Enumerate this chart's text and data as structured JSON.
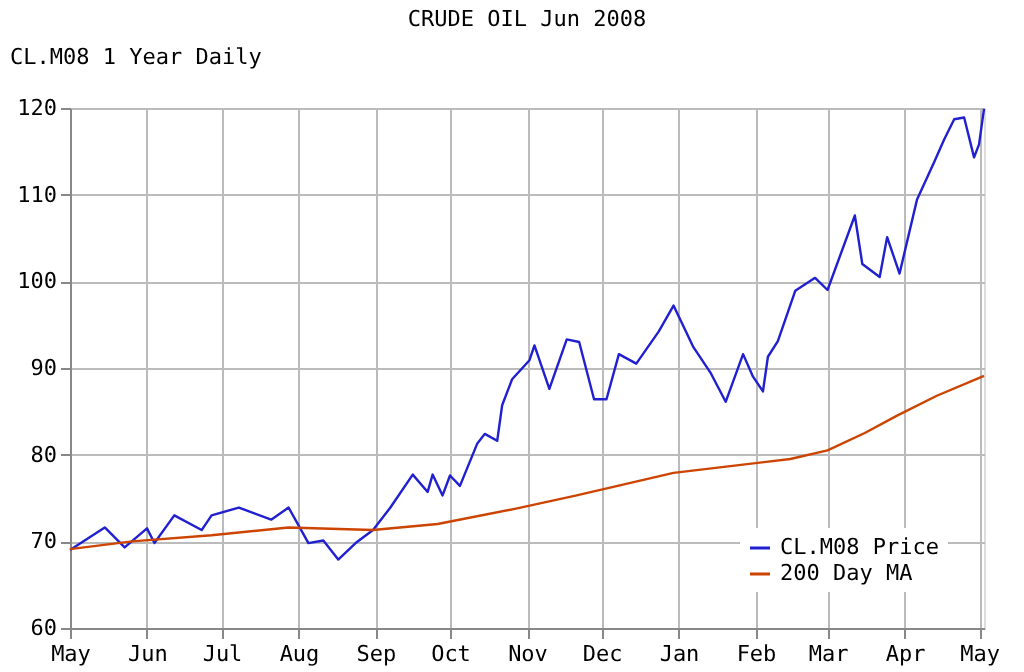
{
  "chart_data": {
    "type": "line",
    "title": "CRUDE OIL Jun 2008",
    "annotations": [
      "CL.M08 1 Year Daily"
    ],
    "x": [
      "2007-05-01",
      "2007-05-15",
      "2007-05-23",
      "2007-06-01",
      "2007-06-04",
      "2007-06-12",
      "2007-06-23",
      "2007-06-27",
      "2007-07-08",
      "2007-07-21",
      "2007-07-28",
      "2007-08-05",
      "2007-08-11",
      "2007-08-17",
      "2007-08-24",
      "2007-08-31",
      "2007-09-07",
      "2007-09-16",
      "2007-09-22",
      "2007-09-24",
      "2007-09-28",
      "2007-10-01",
      "2007-10-05",
      "2007-10-12",
      "2007-10-15",
      "2007-10-20",
      "2007-10-22",
      "2007-10-26",
      "2007-11-02",
      "2007-11-04",
      "2007-11-10",
      "2007-11-17",
      "2007-11-22",
      "2007-11-28",
      "2007-12-03",
      "2007-12-08",
      "2007-12-15",
      "2007-12-24",
      "2007-12-30",
      "2008-01-07",
      "2008-01-14",
      "2008-01-20",
      "2008-01-27",
      "2008-01-31",
      "2008-02-04",
      "2008-02-06",
      "2008-02-10",
      "2008-02-17",
      "2008-02-25",
      "2008-03-01",
      "2008-03-12",
      "2008-03-15",
      "2008-03-22",
      "2008-03-25",
      "2008-03-30",
      "2008-04-06",
      "2008-04-13",
      "2008-04-17",
      "2008-04-21",
      "2008-04-25",
      "2008-04-29",
      "2008-05-01",
      "2008-05-03"
    ],
    "series": [
      {
        "name": "CL.M08 Price",
        "color": "#2020d0",
        "values": [
          69.0,
          71.6,
          69.3,
          71.5,
          69.8,
          73.0,
          71.3,
          73.0,
          73.9,
          72.5,
          73.9,
          69.8,
          70.1,
          67.9,
          69.8,
          71.3,
          73.9,
          77.7,
          75.7,
          77.7,
          75.3,
          77.6,
          76.4,
          81.3,
          82.4,
          81.6,
          85.7,
          88.7,
          90.9,
          92.6,
          87.6,
          93.3,
          93.0,
          86.4,
          86.4,
          91.6,
          90.5,
          94.2,
          97.2,
          92.4,
          89.4,
          86.1,
          91.6,
          89.0,
          87.3,
          91.3,
          93.1,
          98.9,
          100.4,
          99.0,
          107.6,
          102.0,
          100.5,
          105.1,
          100.9,
          109.4,
          113.8,
          116.4,
          118.7,
          118.9,
          114.3,
          115.8,
          119.9
        ]
      },
      {
        "name": "200 Day MA",
        "color": "#cc4400",
        "x": [
          "2007-05-01",
          "2007-05-26",
          "2007-06-27",
          "2007-07-28",
          "2007-08-31",
          "2007-09-26",
          "2007-10-28",
          "2007-11-21",
          "2007-12-30",
          "2008-02-15",
          "2008-03-01",
          "2008-03-16",
          "2008-03-29",
          "2008-04-14",
          "2008-05-03"
        ],
        "values": [
          69.1,
          70.0,
          70.7,
          71.6,
          71.3,
          72.0,
          73.8,
          75.3,
          77.9,
          79.5,
          80.5,
          82.5,
          84.5,
          86.8,
          89.1
        ]
      }
    ],
    "xlim": [
      "2007-05-01",
      "2008-05-03"
    ],
    "xticks": [
      {
        "value": "2007-05-01",
        "label": "May"
      },
      {
        "value": "2007-06-01",
        "label": "Jun"
      },
      {
        "value": "2007-07-01",
        "label": "Jul"
      },
      {
        "value": "2007-08-01",
        "label": "Aug"
      },
      {
        "value": "2007-09-01",
        "label": "Sep"
      },
      {
        "value": "2007-10-01",
        "label": "Oct"
      },
      {
        "value": "2007-11-01",
        "label": "Nov"
      },
      {
        "value": "2007-12-01",
        "label": "Dec"
      },
      {
        "value": "2008-01-01",
        "label": "Jan"
      },
      {
        "value": "2008-02-01",
        "label": "Feb"
      },
      {
        "value": "2008-03-01",
        "label": "Mar"
      },
      {
        "value": "2008-04-01",
        "label": "Apr"
      },
      {
        "value": "2008-05-01",
        "label": "May"
      }
    ],
    "ylim": [
      60,
      120
    ],
    "yticks": [
      60,
      70,
      80,
      90,
      100,
      110,
      120
    ],
    "grid": true,
    "legend": "bottom right",
    "marker": "none",
    "line_style": "solid"
  }
}
